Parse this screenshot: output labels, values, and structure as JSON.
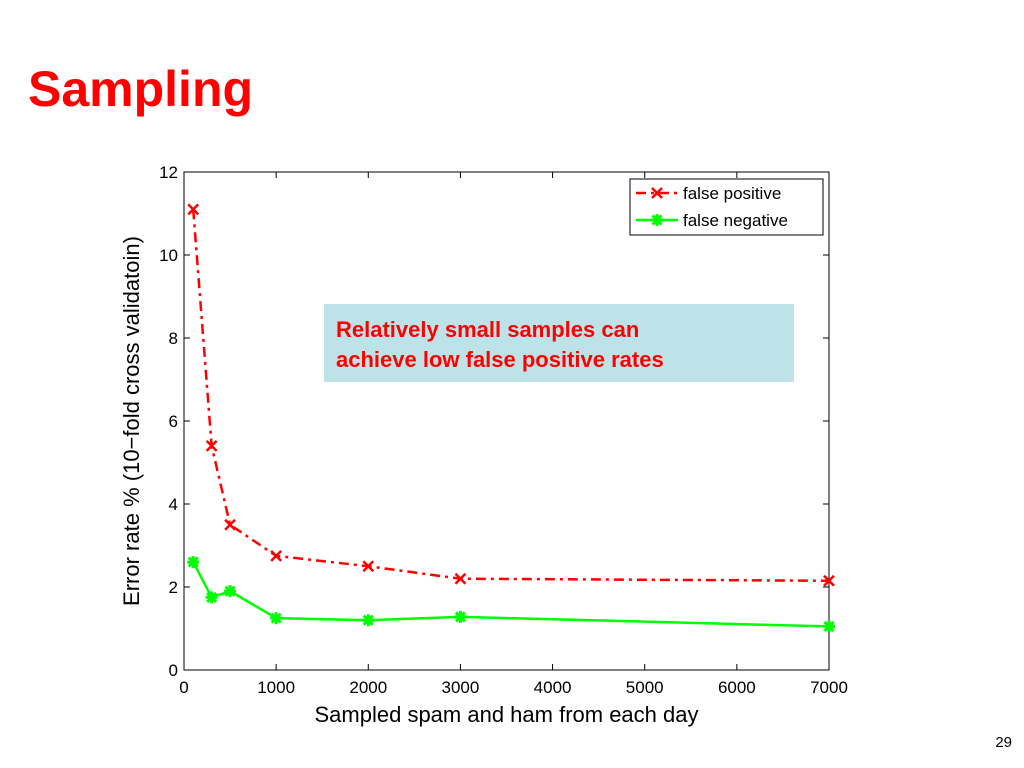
{
  "slide": {
    "title": "Sampling",
    "page_number": "29"
  },
  "callout": {
    "lines": [
      "Relatively small samples can",
      "achieve low false positive rates"
    ],
    "background_color": "#bde3e8",
    "text_color": "#ff0000"
  },
  "chart_data": {
    "type": "line",
    "title": "",
    "xlabel": "Sampled spam and ham from each day",
    "ylabel": "Error rate % (10−fold cross validatoin)",
    "xlim": [
      0,
      7000
    ],
    "ylim": [
      0,
      12
    ],
    "x_ticks": [
      "0",
      "1000",
      "2000",
      "3000",
      "4000",
      "5000",
      "6000",
      "7000"
    ],
    "y_ticks": [
      "0",
      "2",
      "4",
      "6",
      "8",
      "10",
      "12"
    ],
    "grid": false,
    "legend_position": "top-right",
    "series": [
      {
        "name": "false positive",
        "color": "#ff0000",
        "line_style": "dash-dot",
        "marker": "x",
        "x": [
          100,
          300,
          500,
          1000,
          2000,
          3000,
          7000
        ],
        "y": [
          11.1,
          5.4,
          3.5,
          2.75,
          2.5,
          2.2,
          2.15
        ]
      },
      {
        "name": "false negative",
        "color": "#00ff00",
        "line_style": "solid",
        "marker": "star",
        "x": [
          100,
          300,
          500,
          1000,
          2000,
          3000,
          7000
        ],
        "y": [
          2.6,
          1.75,
          1.9,
          1.25,
          1.2,
          1.28,
          1.05
        ]
      }
    ]
  }
}
